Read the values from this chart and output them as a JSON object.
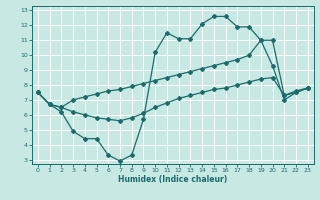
{
  "xlabel": "Humidex (Indice chaleur)",
  "bg_color": "#c8e8e4",
  "grid_color": "#b0d8d4",
  "line_color": "#1a6b6b",
  "xlim": [
    -0.5,
    23.5
  ],
  "ylim": [
    2.7,
    13.3
  ],
  "xticks": [
    0,
    1,
    2,
    3,
    4,
    5,
    6,
    7,
    8,
    9,
    10,
    11,
    12,
    13,
    14,
    15,
    16,
    17,
    18,
    19,
    20,
    21,
    22,
    23
  ],
  "yticks": [
    3,
    4,
    5,
    6,
    7,
    8,
    9,
    10,
    11,
    12,
    13
  ],
  "line1_x": [
    0,
    1,
    2,
    3,
    4,
    5,
    6,
    7,
    8,
    9,
    10,
    11,
    12,
    13,
    14,
    15,
    16,
    17,
    18,
    19,
    20,
    21,
    22,
    23
  ],
  "line1_y": [
    7.5,
    6.7,
    6.2,
    4.9,
    4.4,
    4.4,
    3.3,
    2.9,
    3.3,
    5.7,
    10.2,
    11.5,
    11.1,
    11.1,
    12.1,
    12.6,
    12.6,
    11.9,
    11.9,
    11.0,
    9.3,
    7.0,
    7.5,
    7.8
  ],
  "line2_x": [
    0,
    1,
    2,
    3,
    4,
    5,
    6,
    7,
    8,
    9,
    10,
    11,
    12,
    13,
    14,
    15,
    16,
    17,
    18,
    19,
    20,
    21,
    22,
    23
  ],
  "line2_y": [
    7.5,
    6.7,
    6.5,
    7.0,
    7.2,
    7.4,
    7.6,
    7.7,
    7.9,
    8.1,
    8.3,
    8.5,
    8.7,
    8.9,
    9.1,
    9.3,
    9.5,
    9.7,
    10.0,
    11.0,
    11.0,
    7.3,
    7.5,
    7.8
  ],
  "line3_x": [
    0,
    1,
    2,
    3,
    4,
    5,
    6,
    7,
    8,
    9,
    10,
    11,
    12,
    13,
    14,
    15,
    16,
    17,
    18,
    19,
    20,
    21,
    22,
    23
  ],
  "line3_y": [
    7.5,
    6.7,
    6.5,
    6.2,
    6.0,
    5.8,
    5.7,
    5.6,
    5.8,
    6.1,
    6.5,
    6.8,
    7.1,
    7.3,
    7.5,
    7.7,
    7.8,
    8.0,
    8.2,
    8.4,
    8.5,
    7.3,
    7.6,
    7.8
  ]
}
